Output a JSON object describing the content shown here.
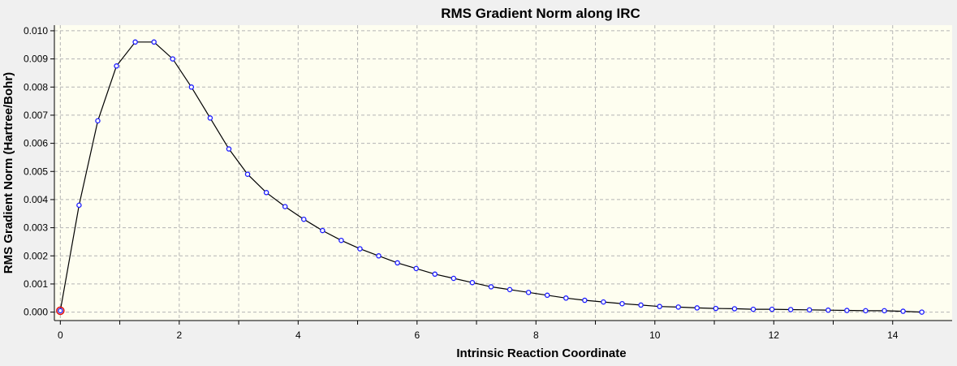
{
  "chart_data": {
    "type": "line",
    "title": "RMS Gradient Norm along IRC",
    "xlabel": "Intrinsic Reaction Coordinate",
    "ylabel": "RMS Gradient Norm (Hartree/Bohr)",
    "xlim": [
      -0.1,
      15.0
    ],
    "ylim": [
      -0.0003,
      0.0102
    ],
    "x_ticks": [
      0,
      2,
      4,
      6,
      8,
      10,
      12,
      14
    ],
    "x_tick_labels": [
      "0",
      "2",
      "4",
      "6",
      "8",
      "10",
      "12",
      "14"
    ],
    "y_ticks": [
      0.0,
      0.001,
      0.002,
      0.003,
      0.004,
      0.005,
      0.006,
      0.007,
      0.008,
      0.009,
      0.01
    ],
    "y_tick_labels": [
      "0.000",
      "0.001",
      "0.002",
      "0.003",
      "0.004",
      "0.005",
      "0.006",
      "0.007",
      "0.008",
      "0.009",
      "0.010"
    ],
    "grid": true,
    "colors": {
      "plot_bg": "#fefef0",
      "frame_bg": "#f0f0f0",
      "grid": "#b4b4b4",
      "line": "#000000",
      "marker": "#1a1aff",
      "highlight": "#e01010"
    },
    "highlight_index": 0,
    "series": [
      {
        "x": [
          0.0,
          0.315,
          0.63,
          0.945,
          1.26,
          1.575,
          1.89,
          2.205,
          2.52,
          2.835,
          3.15,
          3.465,
          3.78,
          4.095,
          4.41,
          4.725,
          5.04,
          5.355,
          5.67,
          5.985,
          6.3,
          6.615,
          6.93,
          7.245,
          7.56,
          7.875,
          8.19,
          8.505,
          8.82,
          9.135,
          9.45,
          9.765,
          10.08,
          10.395,
          10.71,
          11.025,
          11.34,
          11.655,
          11.97,
          12.285,
          12.6,
          12.915,
          13.23,
          13.545,
          13.86,
          14.175,
          14.49
        ],
        "y": [
          5e-05,
          0.0038,
          0.0068,
          0.00875,
          0.0096,
          0.0096,
          0.009,
          0.008,
          0.0069,
          0.0058,
          0.0049,
          0.00425,
          0.00375,
          0.0033,
          0.0029,
          0.00255,
          0.00225,
          0.002,
          0.00175,
          0.00155,
          0.00135,
          0.0012,
          0.00105,
          0.0009,
          0.0008,
          0.0007,
          0.0006,
          0.0005,
          0.00042,
          0.00036,
          0.0003,
          0.00025,
          0.0002,
          0.00018,
          0.00015,
          0.00013,
          0.00012,
          0.0001,
          0.0001,
          9e-05,
          8e-05,
          7e-05,
          6e-05,
          5e-05,
          5e-05,
          3e-05,
          0.0
        ]
      }
    ]
  }
}
